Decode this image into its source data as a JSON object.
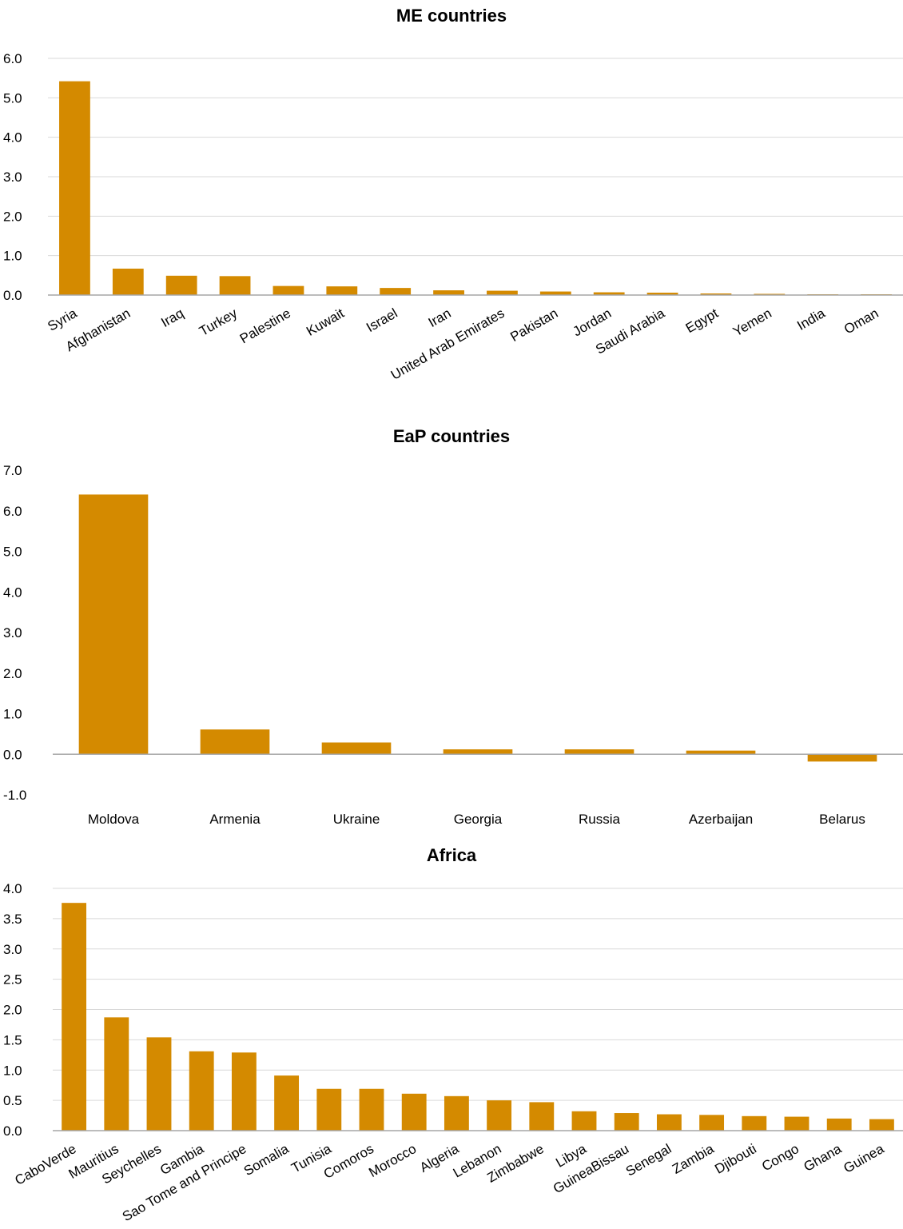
{
  "colors": {
    "bar": "#D48A00",
    "grid": "#d9d9d9",
    "axis": "#a6a6a6"
  },
  "charts": [
    {
      "title": "ME countries",
      "chart_data": {
        "type": "bar",
        "title": "ME countries",
        "categories": [
          "Syria",
          "Afghanistan",
          "Iraq",
          "Turkey",
          "Palestine",
          "Kuwait",
          "Israel",
          "Iran",
          "United Arab Emirates",
          "Pakistan",
          "Jordan",
          "Saudi Arabia",
          "Egypt",
          "Yemen",
          "India",
          "Oman"
        ],
        "values": [
          5.42,
          0.67,
          0.49,
          0.48,
          0.23,
          0.22,
          0.18,
          0.12,
          0.11,
          0.09,
          0.07,
          0.06,
          0.04,
          0.03,
          0.02,
          0.02
        ],
        "ylim": [
          0,
          6
        ],
        "ytick_step": 1,
        "ytick_decimals": 1,
        "tick_rotation": -30,
        "grid": true
      }
    },
    {
      "title": "EaP countries",
      "chart_data": {
        "type": "bar",
        "title": "EaP countries",
        "categories": [
          "Moldova",
          "Armenia",
          "Ukraine",
          "Georgia",
          "Russia",
          "Azerbaijan",
          "Belarus"
        ],
        "values": [
          6.4,
          0.61,
          0.29,
          0.12,
          0.12,
          0.09,
          -0.18
        ],
        "ylim": [
          -1,
          7
        ],
        "ytick_step": 1,
        "ytick_decimals": 1,
        "tick_rotation": 0,
        "grid": false
      }
    },
    {
      "title": "Africa",
      "chart_data": {
        "type": "bar",
        "title": "Africa",
        "categories": [
          "CaboVerde",
          "Mauritius",
          "Seychelles",
          "Gambia",
          "Sao Tome and Principe",
          "Somalia",
          "Tunisia",
          "Comoros",
          "Morocco",
          "Algeria",
          "Lebanon",
          "Zimbabwe",
          "Libya",
          "GuineaBissau",
          "Senegal",
          "Zambia",
          "Djibouti",
          "Congo",
          "Ghana",
          "Guinea"
        ],
        "values": [
          3.76,
          1.87,
          1.54,
          1.31,
          1.29,
          0.91,
          0.69,
          0.69,
          0.61,
          0.57,
          0.5,
          0.47,
          0.32,
          0.29,
          0.27,
          0.26,
          0.24,
          0.23,
          0.2,
          0.19
        ],
        "ylim": [
          0,
          4
        ],
        "ytick_step": 0.5,
        "ytick_decimals": 1,
        "tick_rotation": -30,
        "grid": true
      }
    }
  ]
}
